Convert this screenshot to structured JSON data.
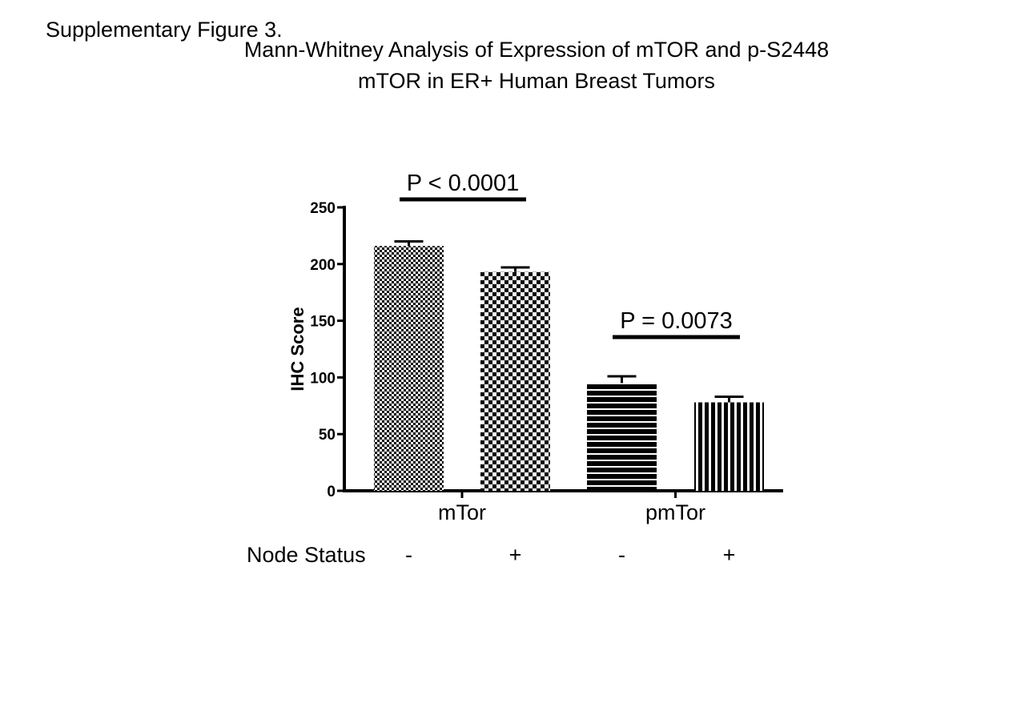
{
  "figure_label": "Supplementary Figure 3.",
  "chart_data": {
    "type": "bar",
    "title": "Mann-Whitney Analysis of Expression of mTOR and p-S2448 mTOR in ER+ Human Breast Tumors",
    "ylabel": "IHC Score",
    "xlabel": "",
    "ylim": [
      0,
      250
    ],
    "yticks": [
      0,
      50,
      100,
      150,
      200,
      250
    ],
    "groups": [
      "mTor",
      "pmTor"
    ],
    "node_status_label": "Node Status",
    "bars": [
      {
        "group": "mTor",
        "node_status": "-",
        "value": 216,
        "error": 4,
        "pattern": "fine-checker"
      },
      {
        "group": "mTor",
        "node_status": "+",
        "value": 193,
        "error": 4,
        "pattern": "coarse-checker"
      },
      {
        "group": "pmTor",
        "node_status": "-",
        "value": 95,
        "error": 6,
        "pattern": "horizontal-stripes"
      },
      {
        "group": "pmTor",
        "node_status": "+",
        "value": 78,
        "error": 5,
        "pattern": "vertical-stripes"
      }
    ],
    "annotations": [
      {
        "text": "P < 0.0001",
        "bars": [
          0,
          1
        ]
      },
      {
        "text": "P = 0.0073",
        "bars": [
          2,
          3
        ]
      }
    ],
    "grid": false
  }
}
